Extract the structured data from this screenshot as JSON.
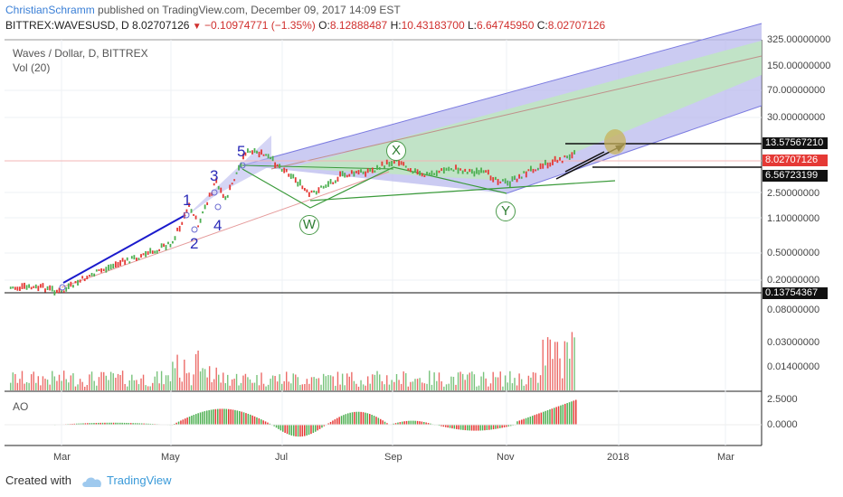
{
  "header": {
    "author": "ChristianSchramm",
    "published_text": "published on TradingView.com, December 09, 2017 14:09 EST",
    "symbol_line": "BITTREX:WAVESUSD, D",
    "last": "8.02707126",
    "change": "−0.10974771 (−1.35%)",
    "o_label": "O:",
    "o_value": "8.12888487",
    "h_label": "H:",
    "h_value": "10.43183700",
    "l_label": "L:",
    "l_value": "6.64745950",
    "c_label": "C:",
    "c_value": "8.02707126"
  },
  "chart_title": "Waves / Dollar, D, BITTREX",
  "volume_title": "Vol (20)",
  "ao_title": "AO",
  "footer": {
    "created_with": "Created with",
    "brand": "TradingView"
  },
  "colors": {
    "up": "#4caf50",
    "down": "#e53935",
    "pitchfork_blue": "#7b7be0",
    "pitchfork_green": "#8fd18f",
    "median": "#c0908a",
    "wave_label": "#2a2ab8"
  },
  "chart_data": {
    "type": "candlestick",
    "title": "Waves / Dollar, D, BITTREX",
    "x_ticks": [
      "Mar",
      "May",
      "Jul",
      "Sep",
      "Nov",
      "2018",
      "Mar"
    ],
    "y_scale": "log",
    "y_ticks": [
      "325.00000000",
      "150.00000000",
      "70.00000000",
      "30.00000000",
      "2.50000000",
      "1.10000000",
      "0.50000000",
      "0.20000000"
    ],
    "price_labels": {
      "target": "13.57567210",
      "last": "8.02707126",
      "support": "6.56723199",
      "low": "0.13754367"
    },
    "wave_labels": [
      "1",
      "2",
      "3",
      "4",
      "5"
    ],
    "corrective_labels": [
      "W",
      "X",
      "Y"
    ],
    "volume_ticks": [
      "0.08000000",
      "0.03000000",
      "0.01400000"
    ],
    "ao_ticks": [
      "2.5000",
      "0.0000"
    ],
    "approx_series": [
      {
        "date": "2017-02-01",
        "price": 0.16
      },
      {
        "date": "2017-02-20",
        "price": 0.16
      },
      {
        "date": "2017-03-01",
        "price": 0.14
      },
      {
        "date": "2017-03-15",
        "price": 0.22
      },
      {
        "date": "2017-04-01",
        "price": 0.32
      },
      {
        "date": "2017-04-20",
        "price": 0.45
      },
      {
        "date": "2017-05-01",
        "price": 0.6
      },
      {
        "date": "2017-05-10",
        "price": 1.7
      },
      {
        "date": "2017-05-15",
        "price": 1.0
      },
      {
        "date": "2017-05-25",
        "price": 3.5
      },
      {
        "date": "2017-05-30",
        "price": 2.0
      },
      {
        "date": "2017-06-10",
        "price": 8.0
      },
      {
        "date": "2017-06-20",
        "price": 7.5
      },
      {
        "date": "2017-07-05",
        "price": 4.2
      },
      {
        "date": "2017-07-15",
        "price": 2.3
      },
      {
        "date": "2017-08-01",
        "price": 4.0
      },
      {
        "date": "2017-08-20",
        "price": 4.8
      },
      {
        "date": "2017-09-01",
        "price": 6.5
      },
      {
        "date": "2017-09-15",
        "price": 4.0
      },
      {
        "date": "2017-10-01",
        "price": 5.0
      },
      {
        "date": "2017-10-20",
        "price": 4.3
      },
      {
        "date": "2017-11-01",
        "price": 3.2
      },
      {
        "date": "2017-11-15",
        "price": 5.0
      },
      {
        "date": "2017-12-01",
        "price": 6.5
      },
      {
        "date": "2017-12-09",
        "price": 8.03
      }
    ]
  }
}
